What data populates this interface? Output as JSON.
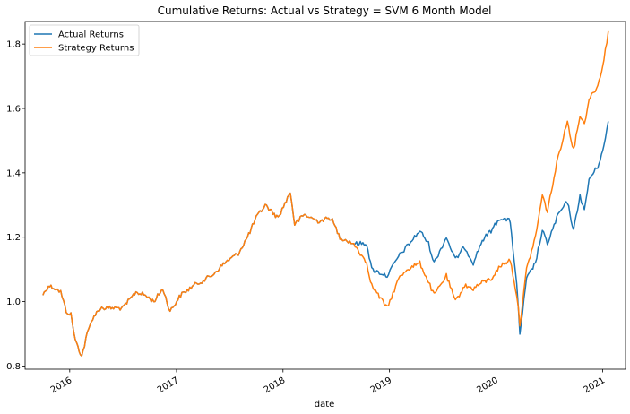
{
  "chart_data": {
    "type": "line",
    "title": "Cumulative Returns: Actual vs Strategy = SVM 6 Month Model",
    "xlabel": "date",
    "ylabel": "",
    "xlim": [
      "2015-08-01",
      "2021-03-20"
    ],
    "ylim": [
      0.79,
      1.87
    ],
    "x_ticks": [
      "2016",
      "2017",
      "2018",
      "2019",
      "2020",
      "2021"
    ],
    "y_ticks": [
      "0.8",
      "1.0",
      "1.2",
      "1.4",
      "1.6",
      "1.8"
    ],
    "grid": false,
    "legend_position": "top-left",
    "colors": {
      "actual": "#1f77b4",
      "strategy": "#ff7f0e"
    },
    "series": [
      {
        "name": "Actual Returns",
        "color": "#1f77b4",
        "points": [
          [
            "2015-10-01",
            1.02
          ],
          [
            "2015-10-20",
            1.05
          ],
          [
            "2015-11-15",
            1.04
          ],
          [
            "2015-12-01",
            1.03
          ],
          [
            "2015-12-20",
            0.97
          ],
          [
            "2016-01-05",
            0.96
          ],
          [
            "2016-01-20",
            0.88
          ],
          [
            "2016-02-11",
            0.83
          ],
          [
            "2016-03-01",
            0.9
          ],
          [
            "2016-03-20",
            0.95
          ],
          [
            "2016-04-15",
            0.98
          ],
          [
            "2016-07-01",
            0.98
          ],
          [
            "2016-08-15",
            1.03
          ],
          [
            "2016-09-15",
            1.02
          ],
          [
            "2016-10-15",
            1.0
          ],
          [
            "2016-11-15",
            1.04
          ],
          [
            "2016-12-10",
            0.97
          ],
          [
            "2017-01-15",
            1.02
          ],
          [
            "2017-03-01",
            1.05
          ],
          [
            "2017-05-01",
            1.08
          ],
          [
            "2017-06-15",
            1.12
          ],
          [
            "2017-08-01",
            1.15
          ],
          [
            "2017-09-01",
            1.2
          ],
          [
            "2017-10-01",
            1.26
          ],
          [
            "2017-11-01",
            1.3
          ],
          [
            "2017-12-15",
            1.26
          ],
          [
            "2018-01-26",
            1.34
          ],
          [
            "2018-02-10",
            1.24
          ],
          [
            "2018-03-15",
            1.27
          ],
          [
            "2018-05-01",
            1.25
          ],
          [
            "2018-06-15",
            1.26
          ],
          [
            "2018-07-15",
            1.2
          ],
          [
            "2018-09-01",
            1.18
          ],
          [
            "2018-10-15",
            1.18
          ],
          [
            "2018-11-01",
            1.1
          ],
          [
            "2018-12-24",
            1.08
          ],
          [
            "2019-02-01",
            1.14
          ],
          [
            "2019-03-01",
            1.17
          ],
          [
            "2019-04-15",
            1.22
          ],
          [
            "2019-05-15",
            1.18
          ],
          [
            "2019-06-03",
            1.12
          ],
          [
            "2019-07-15",
            1.2
          ],
          [
            "2019-08-15",
            1.13
          ],
          [
            "2019-09-15",
            1.17
          ],
          [
            "2019-10-15",
            1.12
          ],
          [
            "2019-11-15",
            1.19
          ],
          [
            "2019-12-15",
            1.22
          ],
          [
            "2020-01-15",
            1.26
          ],
          [
            "2020-02-19",
            1.25
          ],
          [
            "2020-03-12",
            1.05
          ],
          [
            "2020-03-23",
            0.9
          ],
          [
            "2020-04-15",
            1.07
          ],
          [
            "2020-05-15",
            1.12
          ],
          [
            "2020-06-08",
            1.22
          ],
          [
            "2020-06-25",
            1.18
          ],
          [
            "2020-08-01",
            1.27
          ],
          [
            "2020-09-02",
            1.31
          ],
          [
            "2020-09-23",
            1.22
          ],
          [
            "2020-10-15",
            1.33
          ],
          [
            "2020-10-30",
            1.28
          ],
          [
            "2020-11-15",
            1.38
          ],
          [
            "2020-12-15",
            1.42
          ],
          [
            "2021-01-05",
            1.48
          ],
          [
            "2021-01-20",
            1.56
          ]
        ]
      },
      {
        "name": "Strategy Returns",
        "color": "#ff7f0e",
        "points": [
          [
            "2015-10-01",
            1.02
          ],
          [
            "2015-10-20",
            1.05
          ],
          [
            "2015-11-15",
            1.04
          ],
          [
            "2015-12-01",
            1.03
          ],
          [
            "2015-12-20",
            0.97
          ],
          [
            "2016-01-05",
            0.96
          ],
          [
            "2016-01-20",
            0.88
          ],
          [
            "2016-02-11",
            0.83
          ],
          [
            "2016-03-01",
            0.9
          ],
          [
            "2016-03-20",
            0.95
          ],
          [
            "2016-04-15",
            0.98
          ],
          [
            "2016-07-01",
            0.98
          ],
          [
            "2016-08-15",
            1.03
          ],
          [
            "2016-09-15",
            1.02
          ],
          [
            "2016-10-15",
            1.0
          ],
          [
            "2016-11-15",
            1.04
          ],
          [
            "2016-12-10",
            0.97
          ],
          [
            "2017-01-15",
            1.02
          ],
          [
            "2017-03-01",
            1.05
          ],
          [
            "2017-05-01",
            1.08
          ],
          [
            "2017-06-15",
            1.12
          ],
          [
            "2017-08-01",
            1.15
          ],
          [
            "2017-09-01",
            1.2
          ],
          [
            "2017-10-01",
            1.26
          ],
          [
            "2017-11-01",
            1.3
          ],
          [
            "2017-12-15",
            1.26
          ],
          [
            "2018-01-26",
            1.34
          ],
          [
            "2018-02-10",
            1.24
          ],
          [
            "2018-03-15",
            1.27
          ],
          [
            "2018-05-01",
            1.25
          ],
          [
            "2018-06-15",
            1.26
          ],
          [
            "2018-07-15",
            1.2
          ],
          [
            "2018-09-01",
            1.18
          ],
          [
            "2018-10-15",
            1.12
          ],
          [
            "2018-11-01",
            1.05
          ],
          [
            "2018-12-24",
            0.98
          ],
          [
            "2019-02-01",
            1.07
          ],
          [
            "2019-03-01",
            1.1
          ],
          [
            "2019-04-15",
            1.12
          ],
          [
            "2019-05-15",
            1.06
          ],
          [
            "2019-06-03",
            1.02
          ],
          [
            "2019-07-15",
            1.08
          ],
          [
            "2019-08-15",
            1.0
          ],
          [
            "2019-09-15",
            1.05
          ],
          [
            "2019-10-15",
            1.04
          ],
          [
            "2019-11-15",
            1.06
          ],
          [
            "2019-12-15",
            1.07
          ],
          [
            "2020-01-15",
            1.11
          ],
          [
            "2020-02-19",
            1.13
          ],
          [
            "2020-03-12",
            1.02
          ],
          [
            "2020-03-23",
            0.93
          ],
          [
            "2020-04-15",
            1.1
          ],
          [
            "2020-05-15",
            1.2
          ],
          [
            "2020-06-08",
            1.33
          ],
          [
            "2020-06-25",
            1.28
          ],
          [
            "2020-08-01",
            1.45
          ],
          [
            "2020-09-02",
            1.56
          ],
          [
            "2020-09-23",
            1.47
          ],
          [
            "2020-10-15",
            1.58
          ],
          [
            "2020-10-30",
            1.55
          ],
          [
            "2020-11-15",
            1.63
          ],
          [
            "2020-12-15",
            1.67
          ],
          [
            "2021-01-05",
            1.75
          ],
          [
            "2021-01-20",
            1.84
          ]
        ]
      }
    ]
  }
}
